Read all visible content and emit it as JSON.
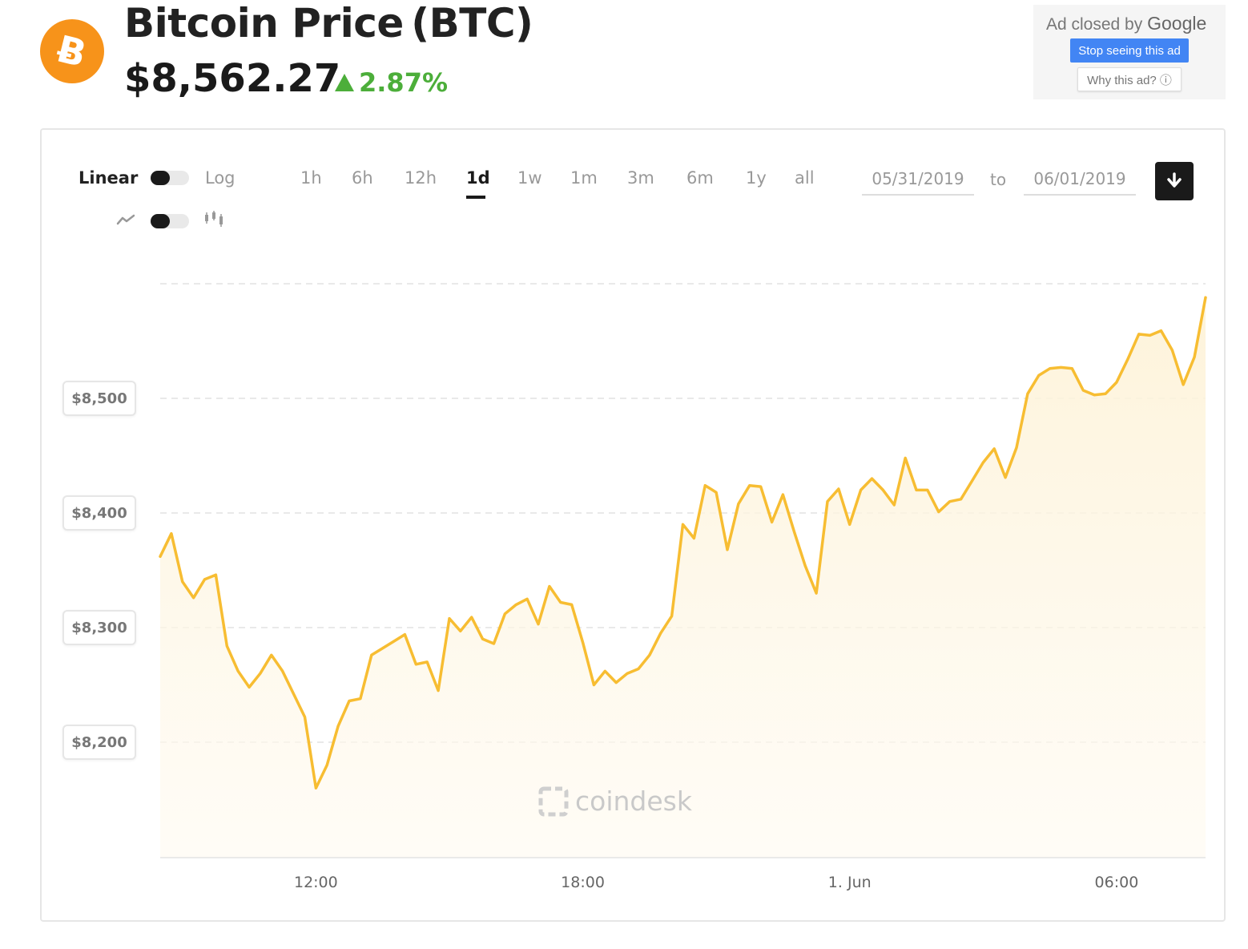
{
  "header": {
    "logo_glyph": "Ƀ",
    "title": "Bitcoin Price (BTC)",
    "price": "$8,562.27",
    "change": "2.87%",
    "change_color": "#4cae3a",
    "brand_color": "#f7931a"
  },
  "ad": {
    "closed_text": "Ad closed by",
    "closed_brand": "Google",
    "stop_label": "Stop seeing this ad",
    "why_label": "Why this ad? ⓘ"
  },
  "controls": {
    "scale_linear": "Linear",
    "scale_log": "Log",
    "line_icon": "line-chart-icon",
    "candle_icon": "candlestick-icon",
    "ranges": [
      "1h",
      "6h",
      "12h",
      "1d",
      "1w",
      "1m",
      "3m",
      "6m",
      "1y",
      "all"
    ],
    "active_range": "1d",
    "date_from": "05/31/2019",
    "date_to": "06/01/2019",
    "to_label": "to",
    "download_icon": "download-icon"
  },
  "watermark": "coindesk",
  "chart_data": {
    "type": "area",
    "title": "",
    "xlabel": "",
    "ylabel": "",
    "line_color": "#f7bd32",
    "x_ticks": [
      "12:00",
      "18:00",
      "1. Jun",
      "06:00"
    ],
    "x_tick_hours": [
      12,
      18,
      24,
      30
    ],
    "y_ticks": [
      "$8,200",
      "$8,300",
      "$8,400",
      "$8,500"
    ],
    "y_tick_values": [
      8200,
      8300,
      8400,
      8500
    ],
    "ylim": [
      8100,
      8600
    ],
    "xlim_hours": [
      8.5,
      32
    ],
    "grid": true,
    "series": [
      {
        "hours": [
          8.5,
          8.75,
          9.0,
          9.25,
          9.5,
          9.75,
          10.0,
          10.25,
          10.5,
          10.75,
          11.0,
          11.25,
          11.5,
          11.75,
          12.0,
          12.25,
          12.5,
          12.75,
          13.0,
          13.25,
          13.5,
          13.75,
          14.0,
          14.25,
          14.5,
          14.75,
          15.0,
          15.25,
          15.5,
          15.75,
          16.0,
          16.25,
          16.5,
          16.75,
          17.0,
          17.25,
          17.5,
          17.75,
          18.0,
          18.25,
          18.5,
          18.75,
          19.0,
          19.25,
          19.5,
          19.75,
          20.0,
          20.25,
          20.5,
          20.75,
          21.0,
          21.25,
          21.5,
          21.75,
          22.0,
          22.25,
          22.5,
          22.75,
          23.0,
          23.25,
          23.5,
          23.75,
          24.0,
          24.25,
          24.5,
          24.75,
          25.0,
          25.25,
          25.5,
          25.75,
          26.0,
          26.25,
          26.5,
          26.75,
          27.0,
          27.25,
          27.5,
          27.75,
          28.0,
          28.25,
          28.5,
          28.75,
          29.0,
          29.25,
          29.5,
          29.75,
          30.0,
          30.25,
          30.5,
          30.75,
          31.0,
          31.25,
          31.5,
          31.75,
          32.0
        ],
        "values": [
          8362,
          8382,
          8340,
          8326,
          8342,
          8346,
          8284,
          8262,
          8248,
          8260,
          8276,
          8262,
          8242,
          8222,
          8160,
          8180,
          8214,
          8236,
          8238,
          8276,
          8282,
          8288,
          8294,
          8268,
          8270,
          8245,
          8308,
          8297,
          8309,
          8290,
          8286,
          8312,
          8320,
          8325,
          8303,
          8336,
          8322,
          8320,
          8287,
          8250,
          8262,
          8252,
          8260,
          8264,
          8276,
          8295,
          8310,
          8390,
          8378,
          8424,
          8418,
          8368,
          8408,
          8424,
          8423,
          8392,
          8416,
          8384,
          8354,
          8330,
          8410,
          8421,
          8390,
          8420,
          8430,
          8420,
          8407,
          8448,
          8420,
          8420,
          8401,
          8410,
          8412,
          8428,
          8444,
          8456,
          8431,
          8457,
          8504,
          8520,
          8526,
          8527,
          8526,
          8507,
          8503,
          8504,
          8514,
          8534,
          8556,
          8555,
          8559,
          8542,
          8512,
          8536,
          8588
        ]
      }
    ]
  }
}
